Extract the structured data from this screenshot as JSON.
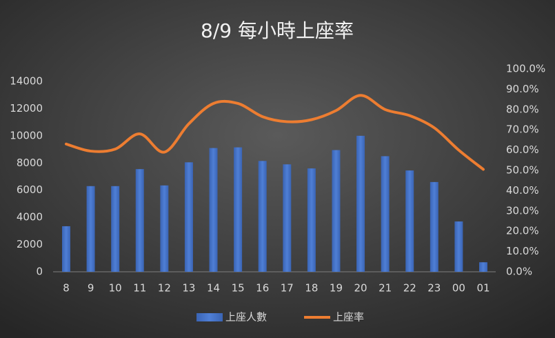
{
  "chart_data": {
    "type": "bar-line",
    "title": "8/9 每小時上座率",
    "categories": [
      "8",
      "9",
      "10",
      "11",
      "12",
      "13",
      "14",
      "15",
      "16",
      "17",
      "18",
      "19",
      "20",
      "21",
      "22",
      "23",
      "00",
      "01"
    ],
    "series": [
      {
        "name": "上座人數",
        "type": "bar",
        "color": "#4472c4",
        "axis": "y",
        "values": [
          3350,
          6300,
          6300,
          7550,
          6350,
          8050,
          9100,
          9150,
          8150,
          7900,
          7600,
          8950,
          10000,
          8500,
          7450,
          6600,
          3700,
          700
        ]
      },
      {
        "name": "上座率",
        "type": "line",
        "color": "#ed7d31",
        "axis": "y2",
        "values": [
          63,
          59.5,
          60.5,
          68,
          59,
          73,
          83,
          83,
          76.5,
          74,
          75,
          79.5,
          87,
          80,
          77,
          71,
          60,
          50.5
        ]
      }
    ],
    "ylim": [
      0,
      14000
    ],
    "yticks": [
      0,
      2000,
      4000,
      6000,
      8000,
      10000,
      12000,
      14000
    ],
    "y2lim": [
      0,
      100
    ],
    "y2ticks": [
      {
        "value": 0,
        "label": "0.0%"
      },
      {
        "value": 10,
        "label": "10.0%"
      },
      {
        "value": 20,
        "label": "20.0%"
      },
      {
        "value": 30,
        "label": "30.0%"
      },
      {
        "value": 40,
        "label": "40.0%"
      },
      {
        "value": 50,
        "label": "50.0%"
      },
      {
        "value": 60,
        "label": "60.0%"
      },
      {
        "value": 70,
        "label": "70.0%"
      },
      {
        "value": 80,
        "label": "80.0%"
      },
      {
        "value": 90,
        "label": "90.0%"
      },
      {
        "value": 100,
        "label": "100.0%"
      }
    ],
    "legend": "bottom"
  }
}
